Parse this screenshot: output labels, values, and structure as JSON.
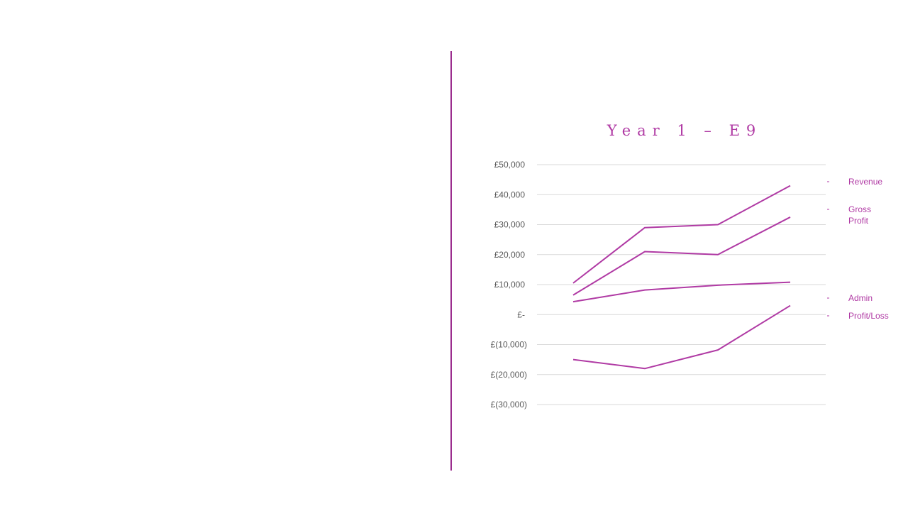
{
  "chart_data": {
    "type": "line",
    "title": "Year 1 – E9",
    "xlabel": "",
    "ylabel": "",
    "ylim": [
      -30000,
      50000
    ],
    "yticks": [
      50000,
      40000,
      30000,
      20000,
      10000,
      0,
      -10000,
      -20000,
      -30000
    ],
    "ytick_labels": [
      "£50,000",
      "£40,000",
      "£30,000",
      "£20,000",
      "£10,000",
      "£-",
      "£(10,000)",
      "£(20,000)",
      "£(30,000)"
    ],
    "grid": true,
    "legend_position": "right",
    "x": [
      1,
      2,
      3,
      4
    ],
    "series": [
      {
        "name": "Revenue",
        "values": [
          10500,
          29000,
          30000,
          43000
        ]
      },
      {
        "name": "Gross Profit",
        "values": [
          6500,
          21000,
          20000,
          32500
        ]
      },
      {
        "name": "Admin",
        "values": [
          4300,
          8200,
          9800,
          10800
        ]
      },
      {
        "name": "Profit/Loss",
        "values": [
          -15000,
          -18000,
          -11800,
          3000
        ]
      }
    ]
  },
  "legend": {
    "revenue": "Revenue",
    "gross_profit_line1": "Gross",
    "gross_profit_line2": "Profit",
    "admin": "Admin",
    "profit_loss": "Profit/Loss"
  },
  "colors": {
    "series_line": "#b03aa4",
    "gridline": "#d9d9d9",
    "divider": "#9b2d8e"
  }
}
